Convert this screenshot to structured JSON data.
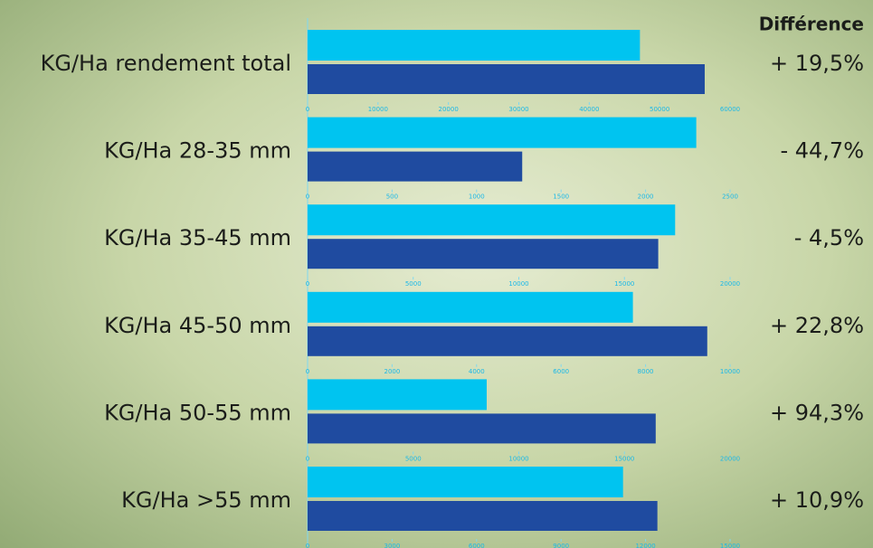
{
  "header": "Différence",
  "chart_data": [
    {
      "type": "bar",
      "title": "KG/Ha rendement total",
      "annotation": "+ 19,5%",
      "values": [
        47200,
        56400
      ],
      "colors": [
        "#00c4f0",
        "#1f4ba0"
      ],
      "xlim": [
        0,
        60000
      ],
      "xticks": [
        0,
        10000,
        20000,
        30000,
        40000,
        50000,
        60000
      ]
    },
    {
      "type": "bar",
      "title": "KG/Ha 28-35 mm",
      "annotation": "- 44,7%",
      "values": [
        2300,
        1270
      ],
      "colors": [
        "#00c4f0",
        "#1f4ba0"
      ],
      "xlim": [
        0,
        2500
      ],
      "xticks": [
        0,
        500,
        1000,
        1500,
        2000,
        2500
      ]
    },
    {
      "type": "bar",
      "title": "KG/Ha 35-45 mm",
      "annotation": "- 4,5%",
      "values": [
        17400,
        16600
      ],
      "colors": [
        "#00c4f0",
        "#1f4ba0"
      ],
      "xlim": [
        0,
        20000
      ],
      "xticks": [
        0,
        5000,
        10000,
        15000,
        20000
      ]
    },
    {
      "type": "bar",
      "title": "KG/Ha 45-50 mm",
      "annotation": "+ 22,8%",
      "values": [
        7700,
        9460
      ],
      "colors": [
        "#00c4f0",
        "#1f4ba0"
      ],
      "xlim": [
        0,
        10000
      ],
      "xticks": [
        0,
        2000,
        4000,
        6000,
        8000,
        10000
      ]
    },
    {
      "type": "bar",
      "title": "KG/Ha 50-55 mm",
      "annotation": "+ 94,3%",
      "values": [
        8480,
        16480
      ],
      "colors": [
        "#00c4f0",
        "#1f4ba0"
      ],
      "xlim": [
        0,
        20000
      ],
      "xticks": [
        0,
        5000,
        10000,
        15000,
        20000
      ]
    },
    {
      "type": "bar",
      "title": "KG/Ha >55 mm",
      "annotation": "+ 10,9%",
      "values": [
        11200,
        12420
      ],
      "colors": [
        "#00c4f0",
        "#1f4ba0"
      ],
      "xlim": [
        0,
        15000
      ],
      "xticks": [
        0,
        3000,
        6000,
        9000,
        12000,
        15000
      ]
    }
  ]
}
